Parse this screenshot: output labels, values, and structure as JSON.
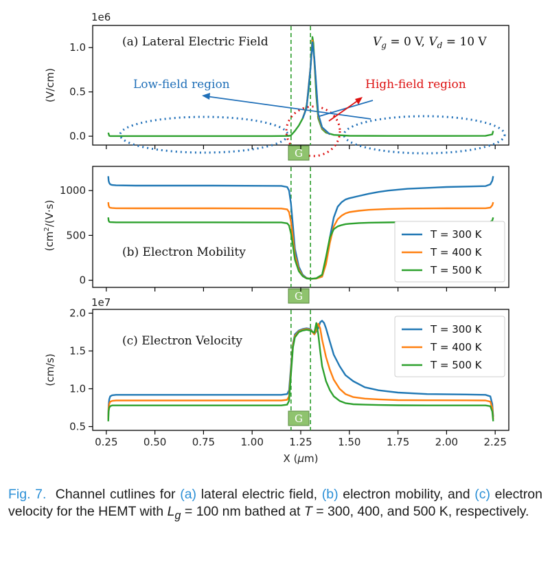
{
  "chart_data": {
    "type": "line",
    "xlabel": "X (μm)",
    "x_ticks": [
      "0.25",
      "0.50",
      "0.75",
      "1.00",
      "1.25",
      "1.50",
      "1.75",
      "2.00",
      "2.25"
    ],
    "xlim": [
      0.18,
      2.32
    ],
    "gate_lines": [
      1.2,
      1.3
    ],
    "gate_label": "G",
    "colors": {
      "T300": "#1f77b4",
      "T400": "#ff7f0e",
      "T500": "#2ca02c",
      "annot_blue": "#1f6fb8",
      "annot_red": "#dd1111",
      "gate": "#8fc36e"
    },
    "panels": [
      {
        "id": "a",
        "title": "(a) Lateral Electric Field",
        "bias": "V_g = 0 V, V_d = 10 V",
        "multiplier": "1e6",
        "ylabel": "(V/cm)",
        "y_ticks": [
          "0.0",
          "0.5",
          "1.0"
        ],
        "ylim": [
          -0.1,
          1.25
        ],
        "annotations": {
          "low": "Low-field region",
          "high": "High-field region"
        },
        "series": [
          {
            "name": "T = 500 K",
            "color": "#2ca02c",
            "x": [
              0.26,
              0.265,
              0.27,
              0.3,
              0.6,
              0.9,
              1.1,
              1.19,
              1.2,
              1.22,
              1.24,
              1.26,
              1.27,
              1.28,
              1.29,
              1.3,
              1.305,
              1.31,
              1.315,
              1.32,
              1.33,
              1.34,
              1.36,
              1.38,
              1.42,
              1.5,
              1.7,
              2.0,
              2.2,
              2.235,
              2.24
            ],
            "y": [
              0.04,
              0.005,
              0.002,
              0.002,
              0.002,
              0.002,
              0.002,
              0.003,
              0.01,
              0.06,
              0.12,
              0.2,
              0.26,
              0.35,
              0.5,
              0.78,
              0.95,
              1.12,
              1.05,
              0.85,
              0.45,
              0.2,
              0.08,
              0.04,
              0.015,
              0.005,
              0.003,
              0.003,
              0.004,
              0.02,
              0.06
            ]
          },
          {
            "name": "T = 400 K",
            "color": "#ff7f0e",
            "x": [
              1.26,
              1.28,
              1.3,
              1.31,
              1.32,
              1.34,
              1.36,
              1.4
            ],
            "y": [
              0.2,
              0.33,
              0.78,
              1.08,
              0.86,
              0.23,
              0.09,
              0.02
            ]
          },
          {
            "name": "T = 300 K",
            "color": "#1f77b4",
            "x": [
              1.26,
              1.28,
              1.3,
              1.31,
              1.32,
              1.34,
              1.36,
              1.4
            ],
            "y": [
              0.2,
              0.32,
              0.77,
              1.06,
              0.88,
              0.25,
              0.1,
              0.02
            ]
          }
        ]
      },
      {
        "id": "b",
        "title": "(b) Electron Mobility",
        "ylabel": "(cm²/(V·s)",
        "y_ticks": [
          "0",
          "500",
          "1000"
        ],
        "ylim": [
          -80,
          1270
        ],
        "legend": [
          "T = 300 K",
          "T = 400 K",
          "T = 500 K"
        ],
        "series": [
          {
            "name": "T = 300 K",
            "color": "#1f77b4",
            "x": [
              0.26,
              0.262,
              0.265,
              0.27,
              0.28,
              0.3,
              0.4,
              0.8,
              1.15,
              1.18,
              1.19,
              1.2,
              1.21,
              1.22,
              1.24,
              1.26,
              1.28,
              1.3,
              1.33,
              1.36,
              1.38,
              1.4,
              1.42,
              1.44,
              1.46,
              1.48,
              1.5,
              1.55,
              1.6,
              1.65,
              1.7,
              1.8,
              2.0,
              2.2,
              2.225,
              2.235,
              2.24
            ],
            "y": [
              1160,
              1110,
              1085,
              1070,
              1062,
              1058,
              1055,
              1055,
              1052,
              1040,
              1000,
              850,
              600,
              350,
              150,
              60,
              25,
              15,
              20,
              40,
              200,
              480,
              700,
              820,
              870,
              900,
              915,
              940,
              965,
              985,
              1000,
              1020,
              1040,
              1050,
              1070,
              1110,
              1160
            ]
          },
          {
            "name": "T = 400 K",
            "color": "#ff7f0e",
            "x": [
              0.26,
              0.262,
              0.265,
              0.27,
              0.28,
              0.3,
              0.4,
              0.8,
              1.15,
              1.18,
              1.19,
              1.2,
              1.21,
              1.22,
              1.24,
              1.26,
              1.28,
              1.3,
              1.33,
              1.36,
              1.38,
              1.4,
              1.42,
              1.44,
              1.46,
              1.48,
              1.5,
              1.55,
              1.6,
              1.7,
              1.8,
              2.0,
              2.2,
              2.225,
              2.235,
              2.24
            ],
            "y": [
              870,
              835,
              815,
              808,
              805,
              803,
              802,
              802,
              800,
              790,
              760,
              650,
              470,
              280,
              120,
              50,
              22,
              15,
              20,
              40,
              180,
              420,
              600,
              680,
              720,
              745,
              760,
              775,
              785,
              795,
              800,
              802,
              803,
              810,
              835,
              870
            ]
          },
          {
            "name": "T = 500 K",
            "color": "#2ca02c",
            "x": [
              0.26,
              0.262,
              0.265,
              0.27,
              0.28,
              0.3,
              0.4,
              0.8,
              1.15,
              1.18,
              1.19,
              1.2,
              1.21,
              1.22,
              1.24,
              1.26,
              1.28,
              1.3,
              1.33,
              1.36,
              1.38,
              1.4,
              1.42,
              1.44,
              1.46,
              1.48,
              1.5,
              1.55,
              1.6,
              1.7,
              1.8,
              2.0,
              2.2,
              2.225,
              2.235,
              2.24
            ],
            "y": [
              700,
              665,
              652,
              648,
              647,
              646,
              646,
              646,
              644,
              635,
              610,
              520,
              380,
              230,
              100,
              45,
              20,
              15,
              22,
              60,
              260,
              480,
              570,
              600,
              615,
              625,
              630,
              638,
              642,
              645,
              647,
              647,
              648,
              652,
              665,
              700
            ]
          }
        ]
      },
      {
        "id": "c",
        "title": "(c) Electron Velocity",
        "multiplier": "1e7",
        "ylabel": "(cm/s)",
        "y_ticks": [
          "0.5",
          "1.0",
          "1.5",
          "2.0"
        ],
        "ylim": [
          0.45,
          2.05
        ],
        "legend": [
          "T = 300 K",
          "T = 400 K",
          "T = 500 K"
        ],
        "series": [
          {
            "name": "T = 300 K",
            "color": "#1f77b4",
            "x": [
              0.26,
              0.262,
              0.265,
              0.27,
              0.28,
              0.3,
              0.4,
              0.8,
              1.15,
              1.18,
              1.19,
              1.2,
              1.21,
              1.22,
              1.24,
              1.26,
              1.28,
              1.3,
              1.32,
              1.34,
              1.35,
              1.36,
              1.37,
              1.38,
              1.4,
              1.42,
              1.45,
              1.48,
              1.52,
              1.58,
              1.65,
              1.75,
              1.9,
              2.1,
              2.2,
              2.225,
              2.235,
              2.24
            ],
            "y": [
              0.63,
              0.78,
              0.86,
              0.9,
              0.915,
              0.92,
              0.92,
              0.92,
              0.92,
              0.93,
              0.98,
              1.3,
              1.6,
              1.72,
              1.77,
              1.79,
              1.8,
              1.79,
              1.72,
              1.8,
              1.88,
              1.9,
              1.87,
              1.8,
              1.62,
              1.45,
              1.3,
              1.18,
              1.1,
              1.02,
              0.98,
              0.95,
              0.93,
              0.925,
              0.92,
              0.9,
              0.8,
              0.63
            ]
          },
          {
            "name": "T = 400 K",
            "color": "#ff7f0e",
            "x": [
              0.26,
              0.262,
              0.265,
              0.27,
              0.28,
              0.3,
              0.4,
              0.8,
              1.15,
              1.18,
              1.19,
              1.2,
              1.21,
              1.22,
              1.24,
              1.26,
              1.28,
              1.3,
              1.32,
              1.33,
              1.34,
              1.35,
              1.36,
              1.38,
              1.4,
              1.42,
              1.45,
              1.48,
              1.52,
              1.58,
              1.65,
              1.75,
              1.9,
              2.1,
              2.2,
              2.225,
              2.235,
              2.24
            ],
            "y": [
              0.6,
              0.74,
              0.8,
              0.83,
              0.84,
              0.845,
              0.845,
              0.845,
              0.845,
              0.855,
              0.9,
              1.25,
              1.58,
              1.7,
              1.76,
              1.78,
              1.79,
              1.78,
              1.72,
              1.78,
              1.86,
              1.8,
              1.65,
              1.42,
              1.25,
              1.12,
              1.0,
              0.93,
              0.89,
              0.87,
              0.86,
              0.85,
              0.848,
              0.847,
              0.845,
              0.83,
              0.75,
              0.6
            ]
          },
          {
            "name": "T = 500 K",
            "color": "#2ca02c",
            "x": [
              0.26,
              0.262,
              0.265,
              0.27,
              0.28,
              0.3,
              0.4,
              0.8,
              1.15,
              1.18,
              1.19,
              1.2,
              1.21,
              1.22,
              1.24,
              1.26,
              1.28,
              1.3,
              1.32,
              1.33,
              1.34,
              1.35,
              1.36,
              1.38,
              1.4,
              1.42,
              1.45,
              1.48,
              1.52,
              1.58,
              1.65,
              1.75,
              1.9,
              2.1,
              2.2,
              2.225,
              2.235,
              2.24
            ],
            "y": [
              0.57,
              0.7,
              0.75,
              0.77,
              0.78,
              0.78,
              0.78,
              0.78,
              0.78,
              0.79,
              0.84,
              1.2,
              1.55,
              1.68,
              1.75,
              1.77,
              1.78,
              1.77,
              1.74,
              1.87,
              1.72,
              1.5,
              1.3,
              1.1,
              0.98,
              0.9,
              0.84,
              0.81,
              0.795,
              0.79,
              0.785,
              0.782,
              0.78,
              0.78,
              0.78,
              0.77,
              0.7,
              0.57
            ]
          }
        ]
      }
    ]
  },
  "caption": {
    "fig_label": "Fig. 7.",
    "part1": "Channel cutlines for",
    "ref_a": "(a)",
    "part2": "lateral electric field,",
    "ref_b": "(b)",
    "part3": "electron mobility,",
    "line2_pre": "and",
    "ref_c": "(c)",
    "part4": "electron velocity for the HEMT with",
    "lg_symbol": "L",
    "lg_sub": "g",
    "lg_value": "= 100 nm bathed at",
    "t_symbol": "T",
    "t_values": "= 300, 400, and 500 K, respectively."
  }
}
